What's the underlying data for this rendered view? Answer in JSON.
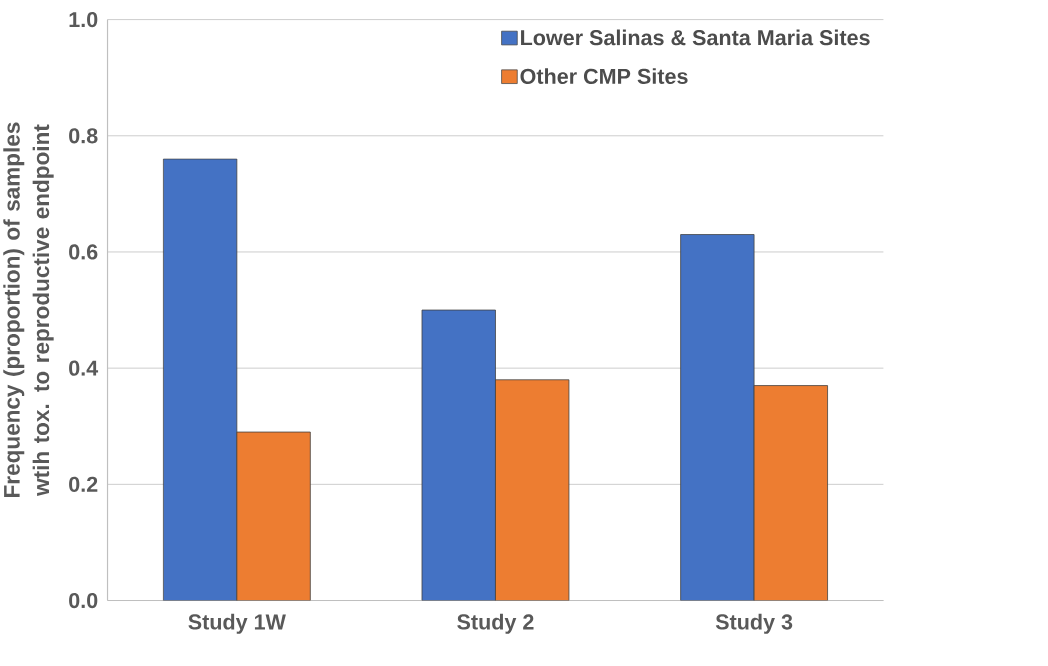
{
  "chart_data": {
    "type": "bar",
    "ylabel": "Frequency (proportion) of samples wtih tox. to reproductive endpoint",
    "categories": [
      "Study 1W",
      "Study 2",
      "Study 3"
    ],
    "series": [
      {
        "name": "Lower Salinas & Santa Maria Sites",
        "color": "#4472c4",
        "values": [
          0.76,
          0.5,
          0.63
        ]
      },
      {
        "name": "Other CMP Sites",
        "color": "#ed7d31",
        "values": [
          0.29,
          0.38,
          0.37
        ]
      }
    ],
    "ylim": [
      0,
      1
    ],
    "yticks": [
      {
        "value": 0,
        "label": "0.0"
      },
      0.2,
      0.4,
      0.6,
      0.8,
      {
        "value": 1,
        "label": "1.0"
      }
    ],
    "grid": "y",
    "legend": "top right"
  }
}
